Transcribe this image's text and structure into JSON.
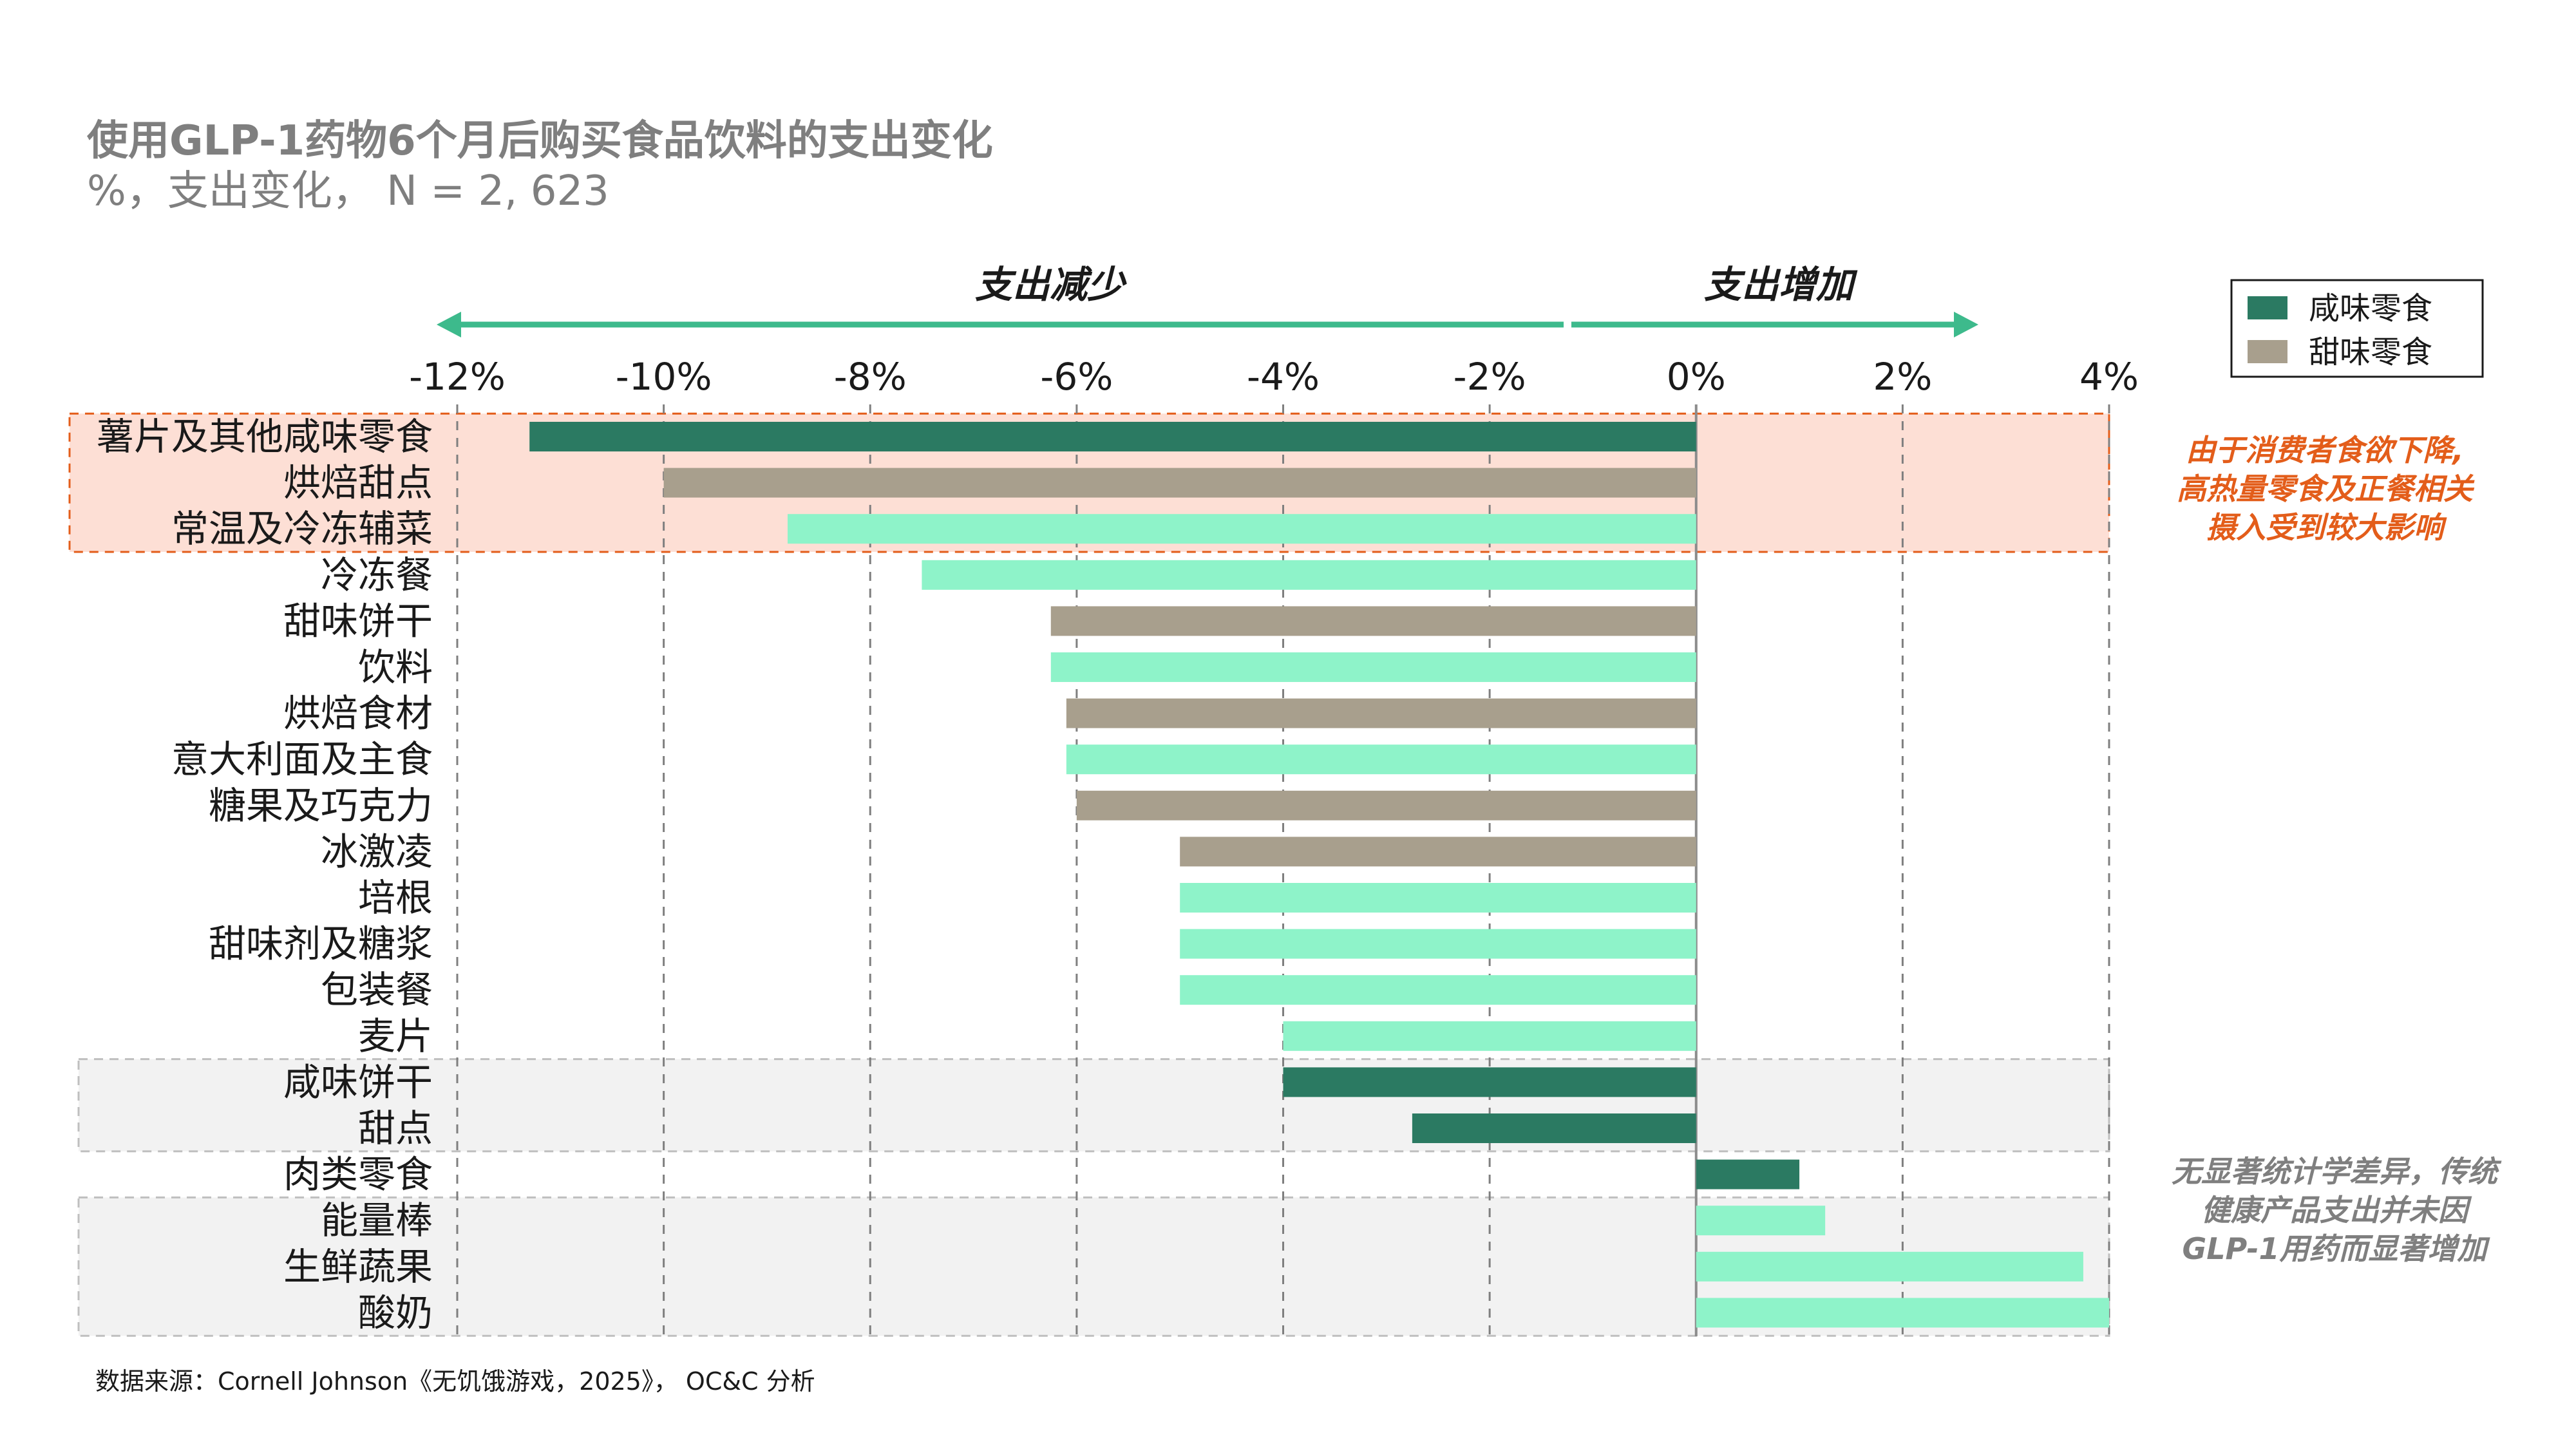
{
  "title": "使用GLP-1药物6个月后购买食品饮料的支出变化",
  "subtitle": "%，支出变化，  N = 2, 623",
  "direction_labels": {
    "decrease": "支出减少",
    "increase": "支出增加"
  },
  "legend": [
    {
      "label": "咸味零食",
      "color": "#2b7a62"
    },
    {
      "label": "甜味零食",
      "color": "#a89f8d"
    }
  ],
  "colors": {
    "savory": "#2b7a62",
    "sweet": "#a89f8d",
    "other": "#8ef3c9",
    "highlight_red": "#fddfd5",
    "highlight_gray": "#f2f2f2",
    "arrow": "#3dba8c"
  },
  "annotations": {
    "top": [
      "由于消费者食欲下降,",
      "高热量零食及正餐相关",
      "摄入受到较大影响"
    ],
    "bottom": [
      "无显著统计学差异，传统",
      "健康产品支出并未因",
      "GLP-1用药而显著增加"
    ]
  },
  "source": "数据来源：Cornell Johnson《无饥饿游戏，2025》， OC&C 分析",
  "chart_data": {
    "type": "bar",
    "orientation": "horizontal",
    "title": "使用GLP-1药物6个月后购买食品饮料的支出变化",
    "subtitle": "%，支出变化，  N = 2, 623",
    "xlim": [
      -12,
      4
    ],
    "x_ticks": [
      -12,
      -10,
      -8,
      -6,
      -4,
      -2,
      0,
      2,
      4
    ],
    "x_tick_labels": [
      "-12%",
      "-10%",
      "-8%",
      "-6%",
      "-4%",
      "-2%",
      "0%",
      "2%",
      "4%"
    ],
    "grid": "vertical-dashed",
    "legend_position": "top-right",
    "categories": [
      "薯片及其他咸味零食",
      "烘焙甜点",
      "常温及冷冻辅菜",
      "冷冻餐",
      "甜味饼干",
      "饮料",
      "烘焙食材",
      "意大利面及主食",
      "糖果及巧克力",
      "冰激凌",
      "培根",
      "甜味剂及糖浆",
      "包装餐",
      "麦片",
      "咸味饼干",
      "甜点",
      "肉类零食",
      "能量棒",
      "生鲜蔬果",
      "酸奶"
    ],
    "values": [
      -11.3,
      -10.0,
      -8.8,
      -7.5,
      -6.25,
      -6.25,
      -6.1,
      -6.1,
      -6.0,
      -5.0,
      -5.0,
      -5.0,
      -5.0,
      -4.0,
      -4.0,
      -2.75,
      1.0,
      1.25,
      3.75,
      4.0
    ],
    "groups": [
      "savory",
      "sweet",
      "other",
      "other",
      "sweet",
      "other",
      "sweet",
      "other",
      "sweet",
      "sweet",
      "other",
      "other",
      "other",
      "other",
      "savory",
      "savory",
      "savory",
      "other",
      "other",
      "other"
    ],
    "highlight_bands": [
      {
        "from_category": 0,
        "to_category": 2,
        "style": "red"
      },
      {
        "from_category": 14,
        "to_category": 15,
        "style": "gray"
      },
      {
        "from_category": 17,
        "to_category": 19,
        "style": "gray"
      }
    ]
  }
}
